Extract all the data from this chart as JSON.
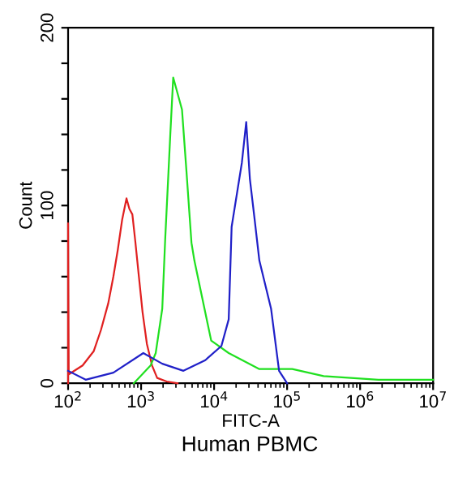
{
  "chart_data": {
    "type": "line",
    "xlabel": "FITC-A",
    "ylabel": "Count",
    "annotations": [
      "Human PBMC"
    ],
    "log": "x",
    "grid": false,
    "legend": false,
    "marker": "none",
    "line_style": "solid",
    "xlim": [
      100,
      10000000
    ],
    "xticks": [
      {
        "value": 100,
        "label": "10$^{2}$"
      },
      {
        "value": 1000,
        "label": "10$^{3}$"
      },
      {
        "value": 10000,
        "label": "10$^{4}$"
      },
      {
        "value": 100000,
        "label": "10$^{5}$"
      },
      {
        "value": 1000000,
        "label": "10$^{6}$"
      },
      {
        "value": 10000000,
        "label": "10$^{7}$"
      }
    ],
    "ylim": [
      0,
      200
    ],
    "yticks": [
      0,
      {
        "value": 20,
        "label": null
      },
      {
        "value": 40,
        "label": null
      },
      {
        "value": 60,
        "label": null
      },
      {
        "value": 80,
        "label": null
      },
      100,
      {
        "value": 120,
        "label": null
      },
      {
        "value": 140,
        "label": null
      },
      {
        "value": 160,
        "label": null
      },
      {
        "value": 180,
        "label": null
      },
      200
    ],
    "series": [
      {
        "color": "#e02020",
        "x": [
          100,
          100,
          102,
          158,
          224,
          282,
          355,
          417,
          479,
          550,
          631,
          692,
          759,
          832,
          933,
          1047,
          1202,
          1413,
          1660,
          2239,
          3162
        ],
        "values": [
          0,
          90,
          5,
          10,
          18,
          30,
          45,
          60,
          75,
          92,
          104,
          98,
          95,
          80,
          60,
          40,
          22,
          10,
          3,
          1,
          0
        ]
      },
      {
        "color": "#20e020",
        "x": [
          794,
          1349,
          1585,
          1950,
          2138,
          2512,
          2754,
          3631,
          4169,
          4898,
          5370,
          9120,
          15850,
          41690,
          117500,
          316200,
          1778000,
          10000000
        ],
        "values": [
          0,
          10,
          17,
          42,
          81,
          140,
          172,
          154,
          120,
          79,
          69,
          24,
          17,
          8,
          8,
          4,
          2,
          2
        ]
      },
      {
        "color": "#2020c8",
        "x": [
          100,
          174,
          417,
          1072,
          1950,
          3802,
          7586,
          12590,
          15850,
          17380,
          23990,
          27540,
          30900,
          35480,
          41690,
          60260,
          77620,
          100000
        ],
        "values": [
          7,
          2,
          6,
          17,
          11,
          7,
          13,
          21,
          36,
          88,
          124,
          147,
          115,
          94,
          69,
          42,
          7,
          0
        ]
      }
    ]
  }
}
